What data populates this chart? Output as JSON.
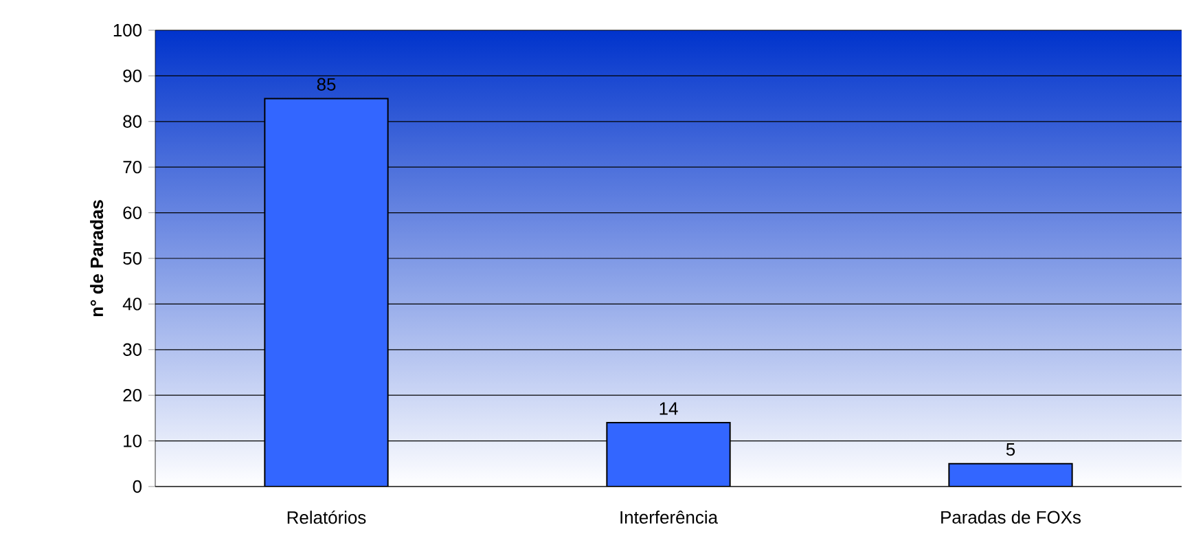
{
  "chart_data": {
    "type": "bar",
    "ylabel": "n° de Paradas",
    "categories": [
      "Relatórios",
      "Interferência",
      "Paradas de FOXs"
    ],
    "values": [
      85,
      14,
      5
    ],
    "color": "#3366ff",
    "ylim": [
      0,
      100
    ],
    "yticks": [
      0,
      10,
      20,
      30,
      40,
      50,
      60,
      70,
      80,
      90,
      100
    ],
    "grid": "y",
    "data_labels": true
  }
}
